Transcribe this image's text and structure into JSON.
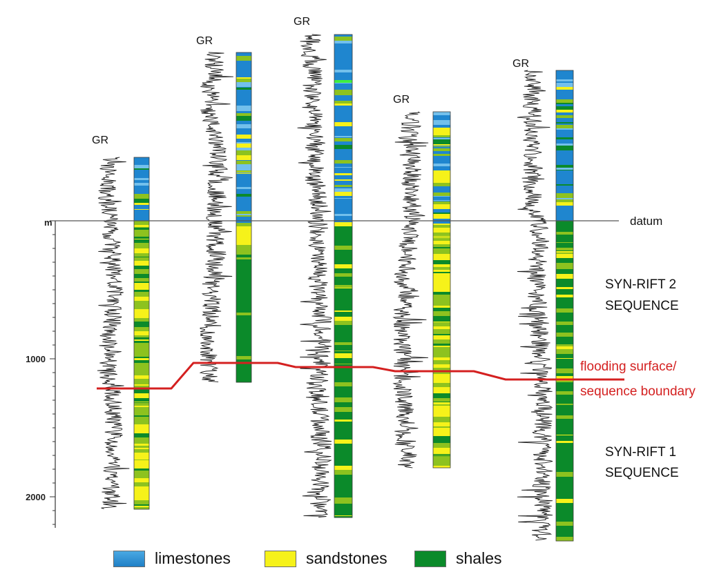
{
  "axis": {
    "unit": "m",
    "ticks": [
      {
        "value": 1000,
        "label": "1000"
      },
      {
        "value": 2000,
        "label": "2000"
      }
    ]
  },
  "datum_label": "datum",
  "log_label": "GR",
  "wells": [
    {
      "id": "w1",
      "gr_label": "GR",
      "top_depth": -460,
      "bottom_depth": 2090
    },
    {
      "id": "w2",
      "gr_label": "GR",
      "top_depth": -1220,
      "bottom_depth": 1170
    },
    {
      "id": "w3",
      "gr_label": "GR",
      "top_depth": -1350,
      "bottom_depth": 2150
    },
    {
      "id": "w4",
      "gr_label": "GR",
      "top_depth": -790,
      "bottom_depth": 1790
    },
    {
      "id": "w5",
      "gr_label": "GR",
      "top_depth": -1090,
      "bottom_depth": 2320
    }
  ],
  "sequences": {
    "upper": {
      "line1": "SYN-RIFT 2",
      "line2": "SEQUENCE"
    },
    "lower": {
      "line1": "SYN-RIFT 1",
      "line2": "SEQUENCE"
    }
  },
  "boundary": {
    "label_line1": "flooding surface/",
    "label_line2": "sequence boundary",
    "color": "#d42020"
  },
  "legend": [
    {
      "key": "limestones",
      "label": "limestones",
      "color": "#1f86cf"
    },
    {
      "key": "sandstones",
      "label": "sandstones",
      "color": "#f6f21a"
    },
    {
      "key": "shales",
      "label": "shales",
      "color": "#0b8a2a"
    }
  ],
  "colors": {
    "limestone": "#1f86cf",
    "limestone_light": "#73c0ec",
    "sandstone": "#f6f21a",
    "sand_shale": "#8dc21f",
    "shale": "#0b8a2a",
    "bright_green": "#3ff03f",
    "boundary": "#d42020"
  }
}
